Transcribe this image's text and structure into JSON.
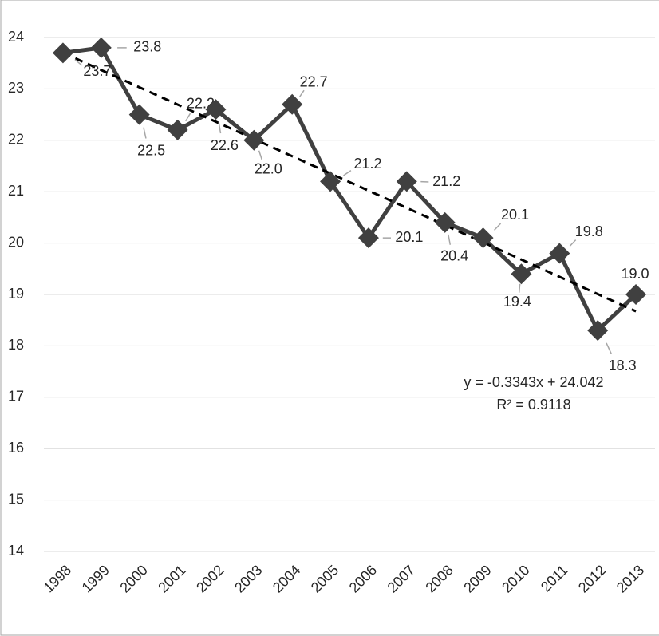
{
  "chart_data": {
    "type": "line",
    "categories": [
      "1998",
      "1999",
      "2000",
      "2001",
      "2002",
      "2003",
      "2004",
      "2005",
      "2006",
      "2007",
      "2008",
      "2009",
      "2010",
      "2011",
      "2012",
      "2013"
    ],
    "series": [
      {
        "color": "#404040",
        "values": [
          23.7,
          23.8,
          22.5,
          22.2,
          22.6,
          22.0,
          22.7,
          21.2,
          20.1,
          21.2,
          20.4,
          20.1,
          19.4,
          19.8,
          18.3,
          19.0
        ],
        "value_labels": [
          "23.7",
          "23.8",
          "22.5",
          "22.2",
          "22.6",
          "22.0",
          "22.7",
          "21.2",
          "20.1",
          "21.2",
          "20.4",
          "20.1",
          "19.4",
          "19.8",
          "18.3",
          "19.0"
        ]
      }
    ],
    "trendline": {
      "type": "linear",
      "equation": "y = -0.3343x + 24.042",
      "r_squared": "R² = 0.9118"
    },
    "ylim": [
      14,
      24
    ],
    "yticks": [
      14,
      15,
      16,
      17,
      18,
      19,
      20,
      21,
      22,
      23,
      24
    ],
    "grid": true
  }
}
